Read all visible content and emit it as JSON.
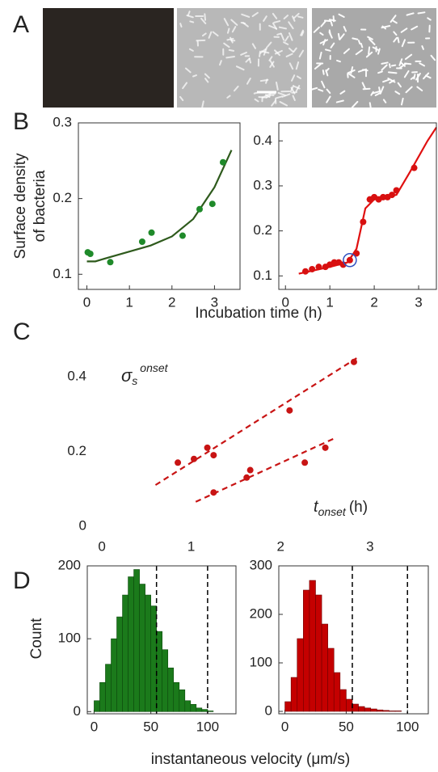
{
  "panel_labels": [
    "A",
    "B",
    "C",
    "D"
  ],
  "chart_data": [
    {
      "type": "scatter",
      "xlim": [
        -0.2,
        3.6
      ],
      "ylim": [
        0.08,
        0.3
      ],
      "xticks": [
        0,
        1,
        2,
        3
      ],
      "yticks": [
        0.1,
        0.2,
        0.3
      ],
      "frame": true,
      "xlabel": "Incubation time (h)",
      "ylabel": [
        "Surface density",
        "of bacteria"
      ],
      "series": [
        {
          "color": "#1f8a2a",
          "x": [
            0.02,
            0.08,
            0.55,
            1.3,
            1.52,
            2.25,
            2.65,
            2.95,
            3.2
          ],
          "values": [
            0.129,
            0.127,
            0.116,
            0.143,
            0.155,
            0.151,
            0.186,
            0.193,
            0.248
          ],
          "fit": {
            "color": "#2e5a1c",
            "style": "solid",
            "x": [
              0,
              0.2,
              0.5,
              1,
              1.5,
              2,
              2.5,
              3,
              3.4
            ],
            "values": [
              0.117,
              0.117,
              0.122,
              0.13,
              0.138,
              0.15,
              0.173,
              0.215,
              0.264
            ]
          }
        }
      ]
    },
    {
      "type": "scatter",
      "xlim": [
        -0.15,
        3.4
      ],
      "ylim": [
        0.07,
        0.44
      ],
      "xticks": [
        0,
        1,
        2,
        3
      ],
      "yticks": [
        0.1,
        0.2,
        0.3,
        0.4
      ],
      "frame": true,
      "series": [
        {
          "color": "#d81010",
          "x": [
            0.45,
            0.6,
            0.75,
            0.9,
            1.0,
            1.1,
            1.2,
            1.3,
            1.45,
            1.6,
            1.75,
            1.9,
            2.0,
            2.1,
            2.2,
            2.3,
            2.4,
            2.5,
            2.9
          ],
          "values": [
            0.11,
            0.115,
            0.12,
            0.12,
            0.125,
            0.13,
            0.13,
            0.125,
            0.135,
            0.15,
            0.22,
            0.27,
            0.275,
            0.27,
            0.275,
            0.275,
            0.28,
            0.29,
            0.34
          ],
          "fit": {
            "color": "#e01010",
            "style": "solid",
            "x": [
              0.3,
              1.0,
              1.4,
              1.6,
              1.8,
              2.0,
              2.5,
              2.8,
              3.2,
              3.4
            ],
            "values": [
              0.105,
              0.12,
              0.13,
              0.16,
              0.25,
              0.27,
              0.28,
              0.33,
              0.4,
              0.43
            ]
          }
        }
      ]
    },
    {
      "type": "scatter",
      "xlim": [
        -0.1,
        3.2
      ],
      "ylim": [
        -0.02,
        0.5
      ],
      "xticks": [
        0,
        1,
        2,
        3
      ],
      "yticks": [
        0,
        0.2,
        0.4
      ],
      "frame": false,
      "y_annotation": {
        "symbol": "σ",
        "subscript": "s",
        "superscript": "onset"
      },
      "x_annotation": {
        "symbol": "t",
        "subscript": "onset",
        "unit": "(h)"
      },
      "series": [
        {
          "color": "#c81414",
          "x": [
            0.85,
            1.03,
            1.18,
            1.25,
            2.1,
            2.82
          ],
          "values": [
            0.17,
            0.18,
            0.21,
            0.19,
            0.31,
            0.44
          ],
          "fit": {
            "color": "#c81414",
            "style": "dashed",
            "x": [
              0.6,
              2.85
            ],
            "values": [
              0.11,
              0.45
            ]
          }
        },
        {
          "color": "#c81414",
          "x": [
            1.25,
            1.62,
            1.66,
            2.27,
            2.5
          ],
          "values": [
            0.09,
            0.13,
            0.15,
            0.17,
            0.21
          ],
          "fit": {
            "color": "#c81414",
            "style": "dashed",
            "x": [
              1.05,
              2.6
            ],
            "values": [
              0.065,
              0.235
            ]
          }
        }
      ]
    },
    {
      "type": "histogram",
      "xlim": [
        -6,
        125
      ],
      "ylim": [
        -3,
        200
      ],
      "xticks": [
        0,
        50,
        100
      ],
      "yticks": [
        0,
        100,
        200
      ],
      "frame": true,
      "ylabel": "Count",
      "xlabel": "instantaneous velocity (μm/s)",
      "color": "#1b7a1b",
      "edge": "#0d4a0d",
      "vlines": [
        55,
        100
      ],
      "bins": [
        0,
        5,
        10,
        15,
        20,
        25,
        30,
        35,
        40,
        45,
        50,
        55,
        60,
        65,
        70,
        75,
        80,
        85,
        90,
        95,
        100,
        105
      ],
      "counts": [
        15,
        40,
        65,
        100,
        130,
        160,
        185,
        195,
        175,
        160,
        145,
        110,
        85,
        60,
        40,
        30,
        15,
        10,
        5,
        3,
        1
      ]
    },
    {
      "type": "histogram",
      "xlim": [
        -5,
        117
      ],
      "ylim": [
        -5,
        300
      ],
      "xticks": [
        0,
        50,
        100
      ],
      "yticks": [
        0,
        100,
        200,
        300
      ],
      "frame": true,
      "color": "#c40000",
      "edge": "#6e0000",
      "vlines": [
        55,
        100
      ],
      "bins": [
        0,
        5,
        10,
        15,
        20,
        25,
        30,
        35,
        40,
        45,
        50,
        55,
        60,
        65,
        70,
        75,
        80,
        85,
        90,
        95
      ],
      "counts": [
        20,
        70,
        150,
        250,
        270,
        240,
        180,
        130,
        80,
        45,
        25,
        15,
        10,
        7,
        5,
        3,
        2,
        1,
        1
      ]
    }
  ]
}
